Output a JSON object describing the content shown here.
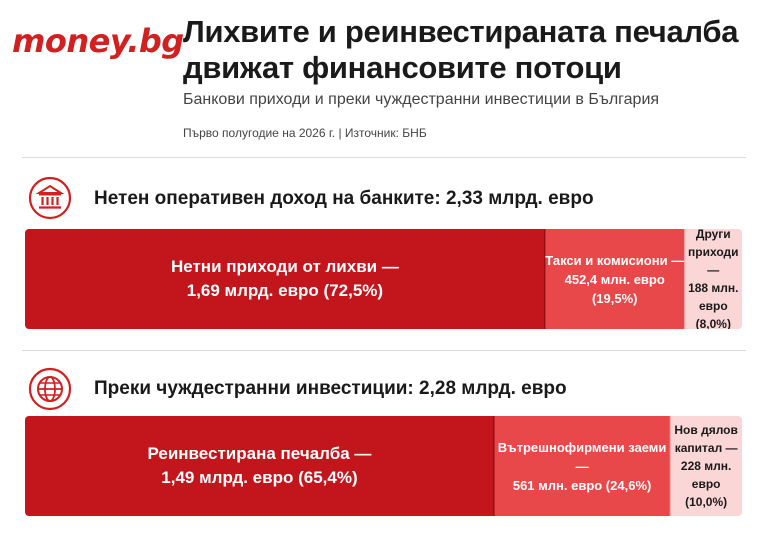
{
  "brand": {
    "logo": "money.bg"
  },
  "header": {
    "title": "Лихвите и реинвестираната печалба движат финансовите потоци",
    "subtitle": "Банкови приходи и преки чуждестранни инвестиции в България",
    "meta": "Първо полугодие на 2026 г.  |  Източник: БНБ"
  },
  "colors": {
    "primary": "#c3161c",
    "secondary": "#e8484a",
    "tertiary": "#fbd6d6",
    "accent": "#d21f1f"
  },
  "icons": {
    "banks": "bank-building-icon",
    "fdi": "globe-icon"
  },
  "chart_data": [
    {
      "type": "bar",
      "orientation": "horizontal-stacked-100",
      "title": "Нетен оперативен доход на банките: 2,33 млрд. евро",
      "total_label": "2,33 млрд. евро",
      "series": [
        {
          "name": "Нетни приходи от лихви",
          "value_text": "1,69 млрд. евро",
          "percent": 72.5,
          "label_lines": [
            "Нетни приходи от лихви —",
            "1,69 млрд. евро (72,5%)"
          ]
        },
        {
          "name": "Такси и комисиони",
          "value_text": "452,4 млн. евро",
          "percent": 19.5,
          "label_lines": [
            "Такси и комисиони —",
            "452,4 млн. евро (19,5%)"
          ]
        },
        {
          "name": "Други приходи",
          "value_text": "188 млн. евро",
          "percent": 8.0,
          "label_lines": [
            "Други приходи —",
            "188 млн. евро",
            "(8,0%)"
          ]
        }
      ]
    },
    {
      "type": "bar",
      "orientation": "horizontal-stacked-100",
      "title": "Преки чуждестранни инвестиции: 2,28 млрд. евро",
      "total_label": "2,28 млрд. евро",
      "series": [
        {
          "name": "Реинвестирана печалба",
          "value_text": "1,49 млрд. евро",
          "percent": 65.4,
          "label_lines": [
            "Реинвестирана печалба —",
            "1,49 млрд. евро (65,4%)"
          ]
        },
        {
          "name": "Вътрешнофирмени заеми",
          "value_text": "561 млн. евро",
          "percent": 24.6,
          "label_lines": [
            "Вътрешнофирмени заеми —",
            "561 млн. евро (24,6%)"
          ]
        },
        {
          "name": "Нов дялов капитал",
          "value_text": "228 млн. евро",
          "percent": 10.0,
          "label_lines": [
            "Нов дялов капитал —",
            "228 млн. евро",
            "(10,0%)"
          ]
        }
      ]
    }
  ]
}
